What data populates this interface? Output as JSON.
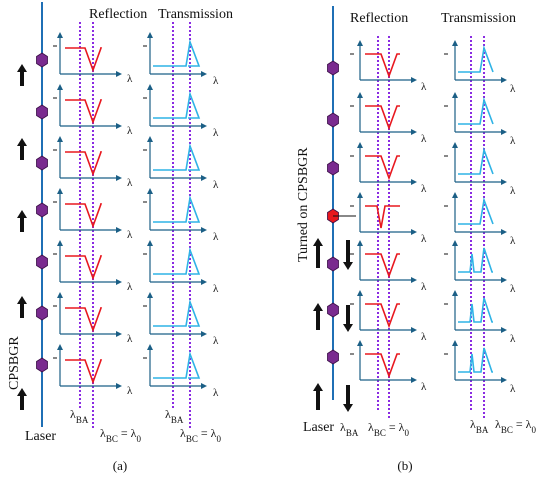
{
  "panels": [
    {
      "id": "a",
      "caption": "(a)",
      "reflection_title": "Reflection",
      "transmission_title": "Transmission",
      "wavelength_symbol": "λ",
      "fiber_label": "CPSBGR",
      "laser_label": "Laser",
      "lambda_ba": "λBA",
      "lambda_bc": "λBC = λ0",
      "stages": 7,
      "turned_on_stage": null
    },
    {
      "id": "b",
      "caption": "(b)",
      "reflection_title": "Reflection",
      "transmission_title": "Transmission",
      "wavelength_symbol": "λ",
      "fiber_label": "Turned on CPSBGR",
      "laser_label": "Laser",
      "lambda_ba": "λBA",
      "lambda_bc": "λBC = λ0",
      "stages": 7,
      "turned_on_stage": 4
    }
  ],
  "colors": {
    "fiber": "#1f6fb5",
    "grating": "#7a2b8f",
    "grating_on": "#e8181f",
    "reflection_curve": "#e8181f",
    "transmission_curve": "#2fb3e6",
    "axes": "#1b5f86",
    "dotted_marker": "#8a2be2",
    "arrow": "#111111"
  }
}
